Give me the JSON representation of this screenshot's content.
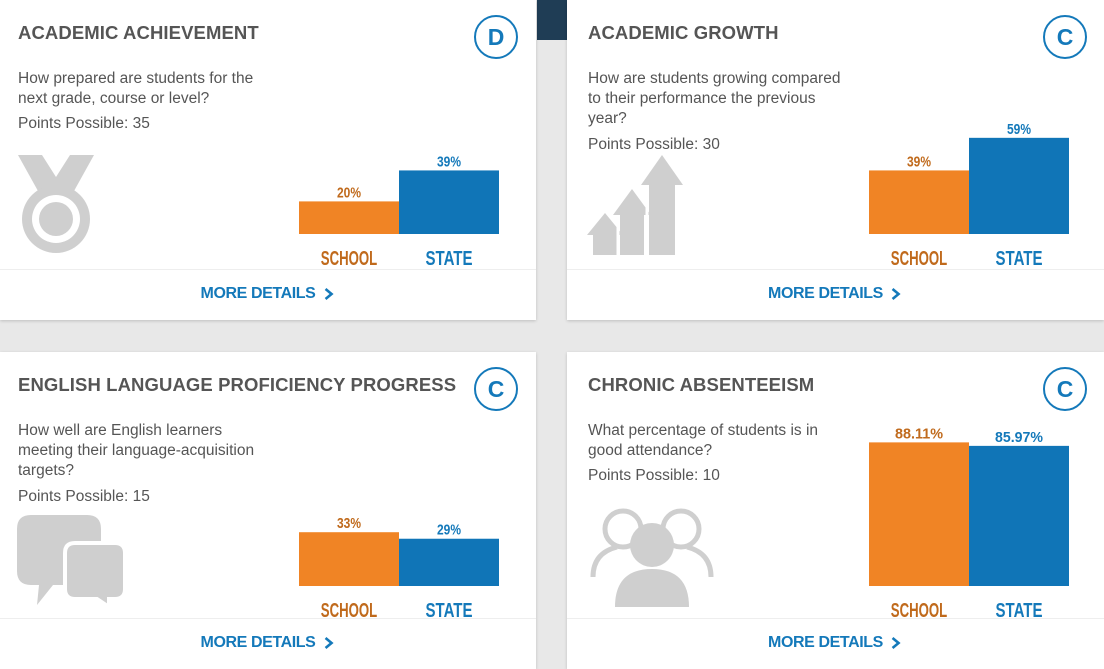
{
  "cards": [
    {
      "title": "ACADEMIC ACHIEVEMENT",
      "grade": "D",
      "question": "How prepared are students for the next grade, course or level?",
      "points": "Points Possible: 35",
      "icon": "medal-icon",
      "more_details": "MORE DETAILS"
    },
    {
      "title": "ACADEMIC GROWTH",
      "grade": "C",
      "question": "How are students growing compared to their performance the previous year?",
      "points": "Points Possible: 30",
      "icon": "growth-arrows-icon",
      "more_details": "MORE DETAILS"
    },
    {
      "title": "ENGLISH LANGUAGE PROFICIENCY PROGRESS",
      "grade": "C",
      "question": "How well are English learners meeting their language-acquisition targets?",
      "points": "Points Possible: 15",
      "icon": "speech-bubbles-icon",
      "more_details": "MORE DETAILS"
    },
    {
      "title": "CHRONIC ABSENTEEISM",
      "grade": "C",
      "question": "What percentage of students is in good attendance?",
      "points": "Points Possible: 10",
      "icon": "people-icon",
      "more_details": "MORE DETAILS"
    }
  ],
  "colors": {
    "school": "#f08425",
    "state": "#1075b7",
    "school_label": "#c06a1c",
    "state_label": "#1479ba"
  },
  "chart_data": [
    {
      "type": "bar",
      "categories": [
        "SCHOOL",
        "STATE"
      ],
      "values": [
        20,
        39
      ],
      "labels": [
        "20%",
        "39%"
      ]
    },
    {
      "type": "bar",
      "categories": [
        "SCHOOL",
        "STATE"
      ],
      "values": [
        39,
        59
      ],
      "labels": [
        "39%",
        "59%"
      ]
    },
    {
      "type": "bar",
      "categories": [
        "SCHOOL",
        "STATE"
      ],
      "values": [
        33,
        29
      ],
      "labels": [
        "33%",
        "29%"
      ]
    },
    {
      "type": "bar",
      "categories": [
        "SCHOOL",
        "STATE"
      ],
      "values": [
        88.11,
        85.97
      ],
      "labels": [
        "88.11%",
        "85.97%"
      ]
    }
  ]
}
